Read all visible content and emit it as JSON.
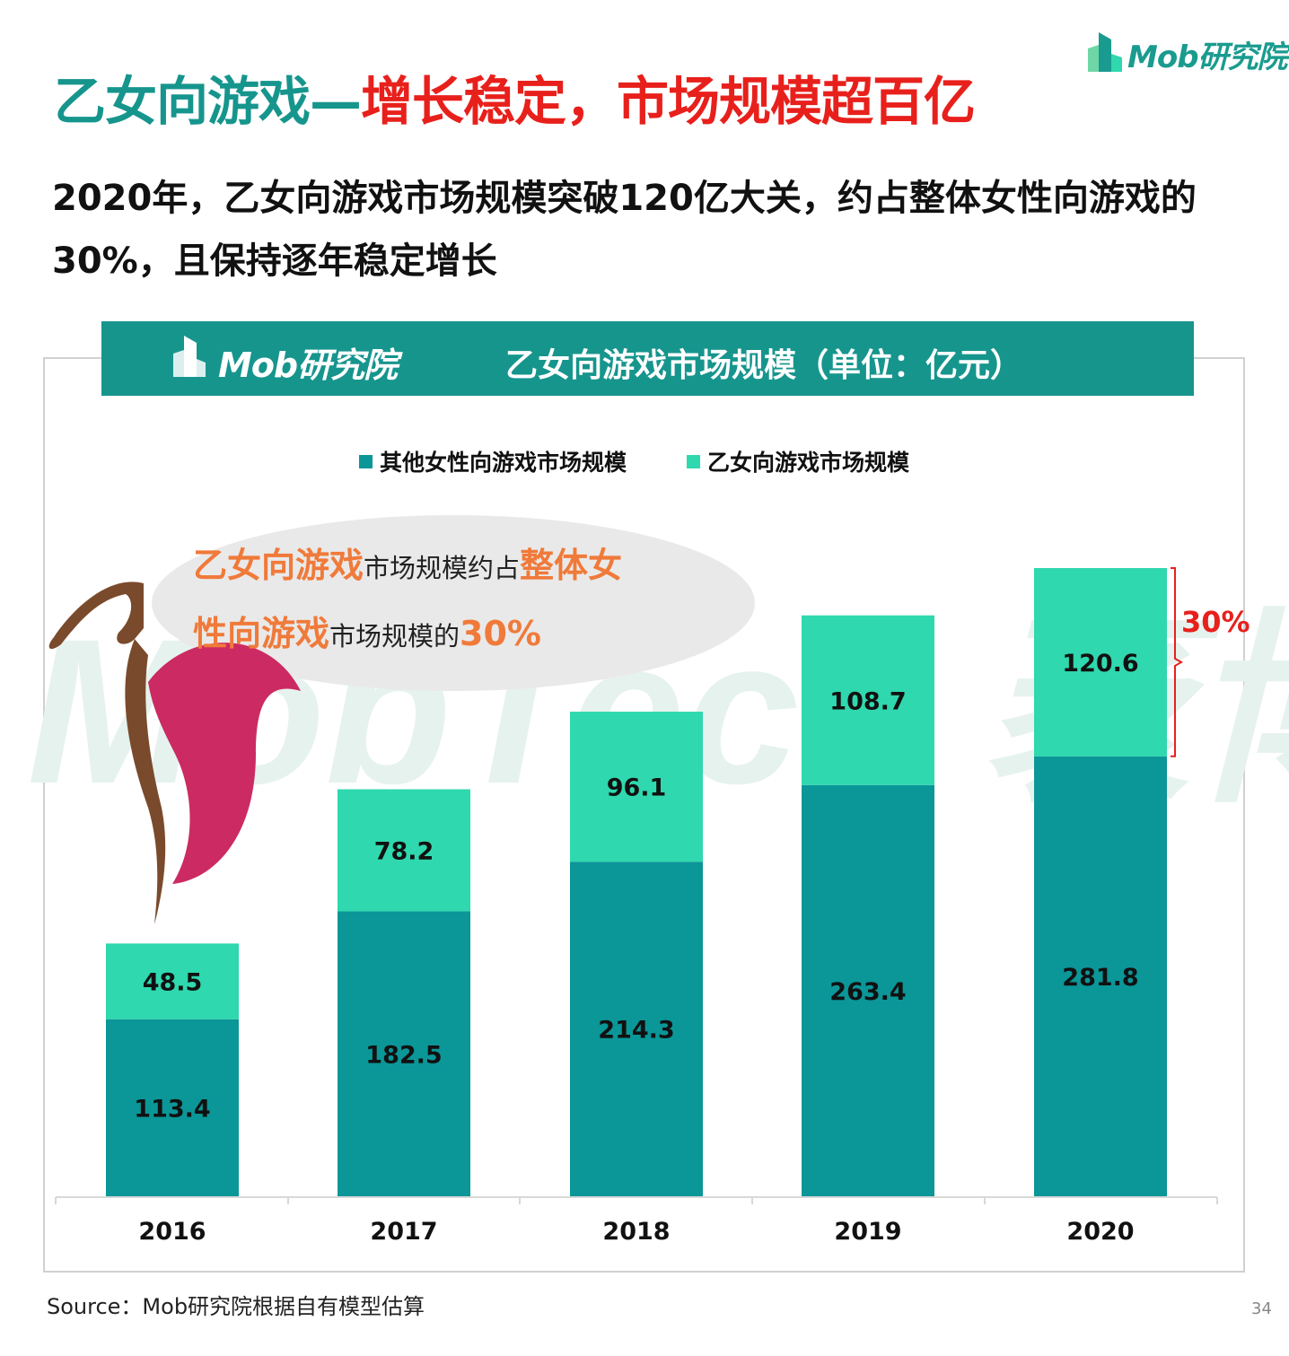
{
  "header": {
    "title_part1": "乙女向游戏—",
    "title_part2": "增长稳定，市场规模超百亿",
    "subtitle": "2020年，乙女向游戏市场规模突破120亿大关，约占整体女性向游戏的30%，且保持逐年稳定增长",
    "logo_text": "Mob研究院"
  },
  "colors": {
    "teal_dark": "#0b9698",
    "teal_light": "#2fd8ae",
    "title_teal": "#16958d",
    "title_red": "#e8201c",
    "highlight_orange": "#f07a3a"
  },
  "banner": {
    "logo_text": "Mob研究院",
    "chart_title": "乙女向游戏市场规模（单位：亿元）"
  },
  "callout": {
    "hl1": "乙女向游戏",
    "t1": "市场规模约占",
    "hl2": "整体女",
    "hl3": "性向游戏",
    "t2": "市场规模的",
    "hl4": "30%"
  },
  "bracket_label": "30%",
  "chart_data": {
    "type": "bar",
    "stacked": true,
    "categories": [
      "2016",
      "2017",
      "2018",
      "2019",
      "2020"
    ],
    "series": [
      {
        "name": "其他女性向游戏市场规模",
        "values": [
          113.4,
          182.5,
          214.3,
          263.4,
          281.8
        ],
        "color": "#0b9698"
      },
      {
        "name": "乙女向游戏市场规模",
        "values": [
          48.5,
          78.2,
          96.1,
          108.7,
          120.6
        ],
        "color": "#2fd8ae"
      }
    ],
    "ylim": [
      0,
      402.4
    ],
    "legend_position": "top-center"
  },
  "watermark_text": "MobTech 袤博",
  "footer": {
    "source": "Source：Mob研究院根据自有模型估算",
    "page": "34"
  }
}
